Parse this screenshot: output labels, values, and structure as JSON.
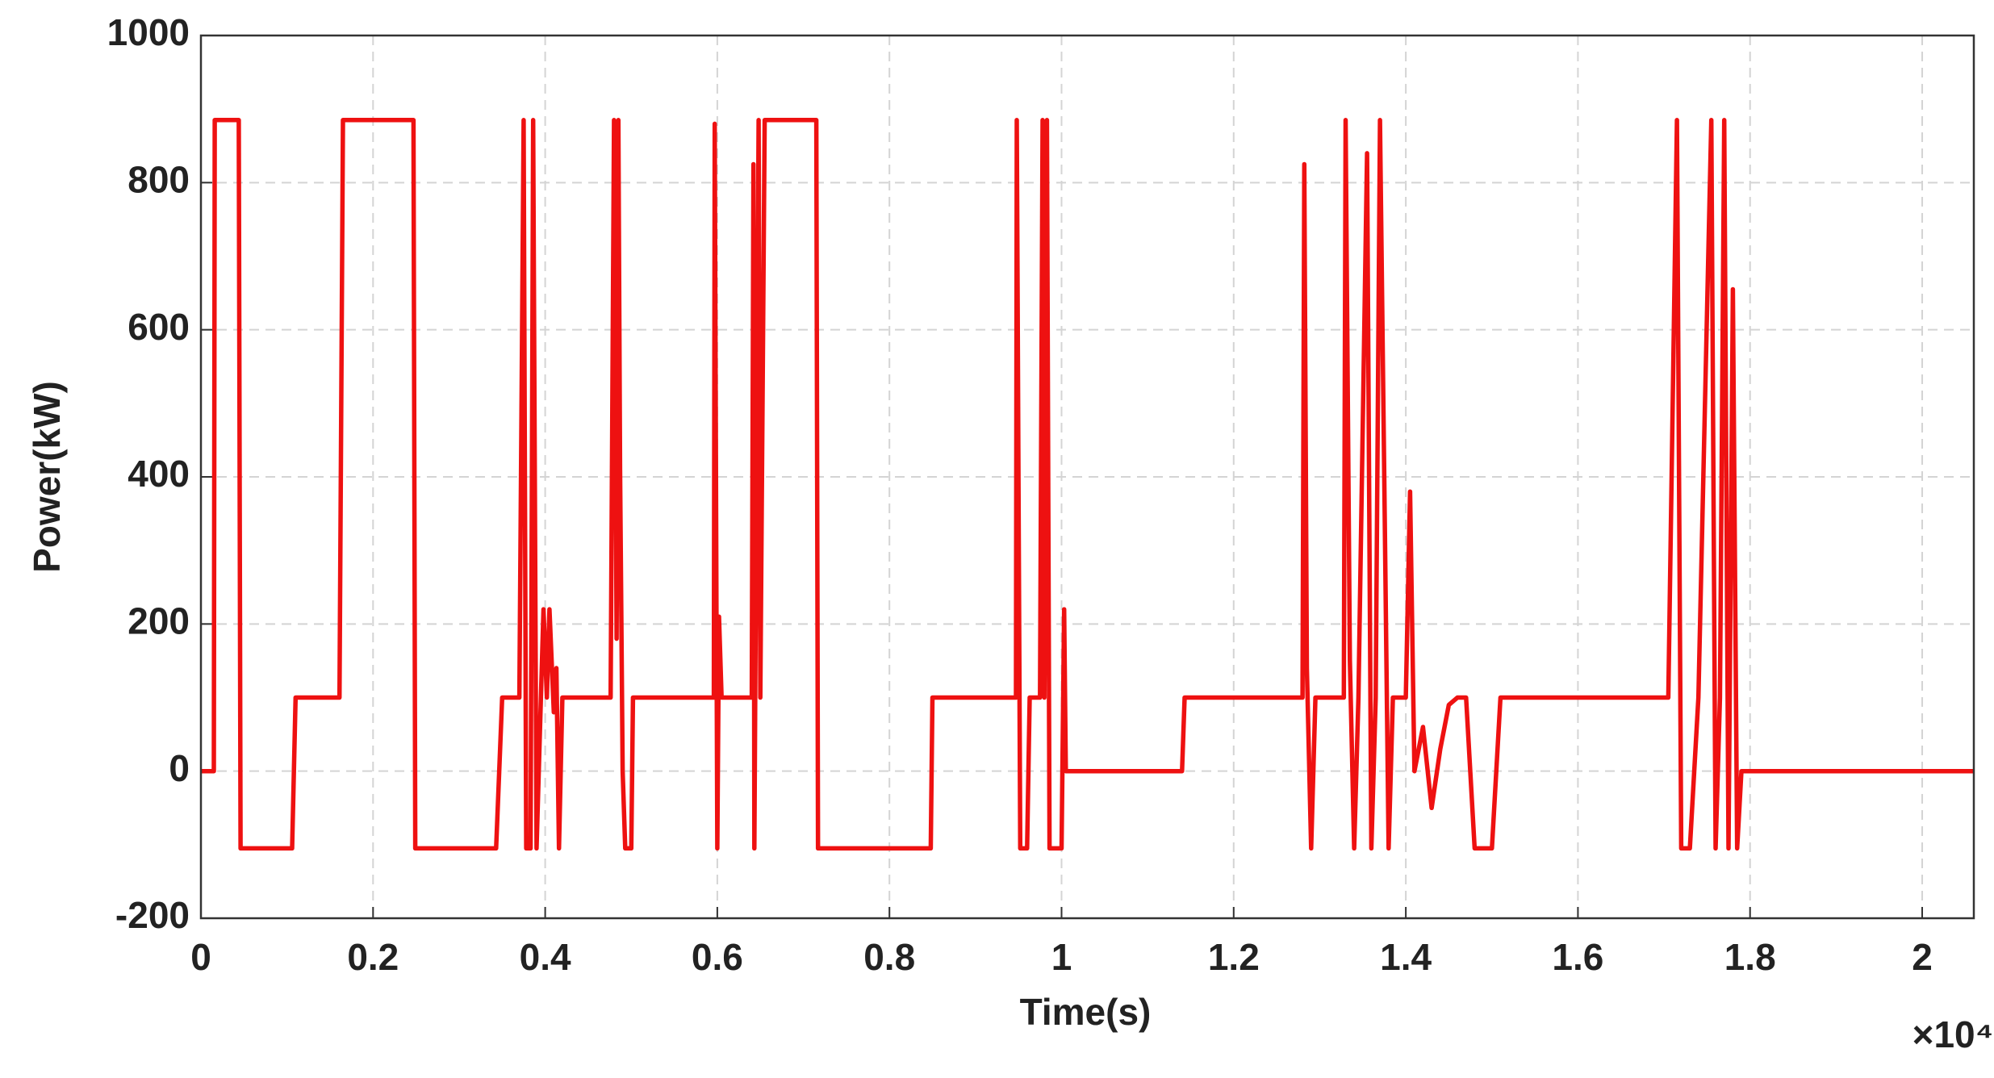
{
  "chart_data": {
    "type": "line",
    "x_label": "Time(s)",
    "y_label": "Power(kW)",
    "x_scale_label": "×10⁴",
    "color": "#ee1111",
    "grid": true,
    "xlim": [
      0,
      2.06
    ],
    "ylim": [
      -200,
      1000
    ],
    "xticks": [
      0,
      0.2,
      0.4,
      0.6,
      0.8,
      1,
      1.2,
      1.4,
      1.6,
      1.8,
      2
    ],
    "yticks": [
      -200,
      0,
      200,
      400,
      600,
      800,
      1000
    ],
    "x": [
      0,
      0.015,
      0.016,
      0.044,
      0.046,
      0.106,
      0.11,
      0.161,
      0.165,
      0.247,
      0.249,
      0.343,
      0.35,
      0.37,
      0.375,
      0.378,
      0.383,
      0.386,
      0.39,
      0.395,
      0.398,
      0.402,
      0.405,
      0.41,
      0.413,
      0.416,
      0.42,
      0.422,
      0.476,
      0.48,
      0.483,
      0.485,
      0.487,
      0.49,
      0.493,
      0.5,
      0.502,
      0.596,
      0.597,
      0.6,
      0.602,
      0.605,
      0.64,
      0.642,
      0.643,
      0.648,
      0.65,
      0.655,
      0.715,
      0.717,
      0.848,
      0.85,
      0.947,
      0.948,
      0.952,
      0.96,
      0.963,
      0.975,
      0.978,
      0.98,
      0.983,
      0.986,
      1.0,
      1.003,
      1.005,
      1.01,
      1.14,
      1.143,
      1.28,
      1.282,
      1.285,
      1.29,
      1.295,
      1.328,
      1.33,
      1.335,
      1.34,
      1.345,
      1.355,
      1.36,
      1.365,
      1.37,
      1.375,
      1.38,
      1.385,
      1.4,
      1.405,
      1.41,
      1.42,
      1.43,
      1.44,
      1.45,
      1.46,
      1.47,
      1.48,
      1.5,
      1.51,
      1.705,
      1.715,
      1.72,
      1.73,
      1.74,
      1.755,
      1.76,
      1.765,
      1.77,
      1.775,
      1.78,
      1.785,
      1.79,
      2.06
    ],
    "values": [
      0,
      0,
      885,
      885,
      -105,
      -105,
      100,
      100,
      885,
      885,
      -105,
      -105,
      100,
      100,
      885,
      -105,
      -105,
      885,
      -105,
      100,
      220,
      100,
      220,
      80,
      140,
      -105,
      100,
      100,
      100,
      885,
      180,
      885,
      410,
      0,
      -105,
      -105,
      100,
      100,
      880,
      -105,
      210,
      100,
      100,
      825,
      -105,
      885,
      100,
      885,
      885,
      -105,
      -105,
      100,
      100,
      885,
      -105,
      -105,
      100,
      100,
      885,
      100,
      885,
      -105,
      -105,
      220,
      0,
      0,
      0,
      100,
      100,
      825,
      140,
      -105,
      100,
      100,
      885,
      150,
      -105,
      100,
      840,
      -105,
      100,
      885,
      400,
      -105,
      100,
      100,
      380,
      0,
      60,
      -50,
      30,
      90,
      100,
      100,
      -105,
      -105,
      100,
      100,
      885,
      -105,
      -105,
      100,
      885,
      -105,
      100,
      885,
      -105,
      655,
      -105,
      0,
      0
    ]
  }
}
